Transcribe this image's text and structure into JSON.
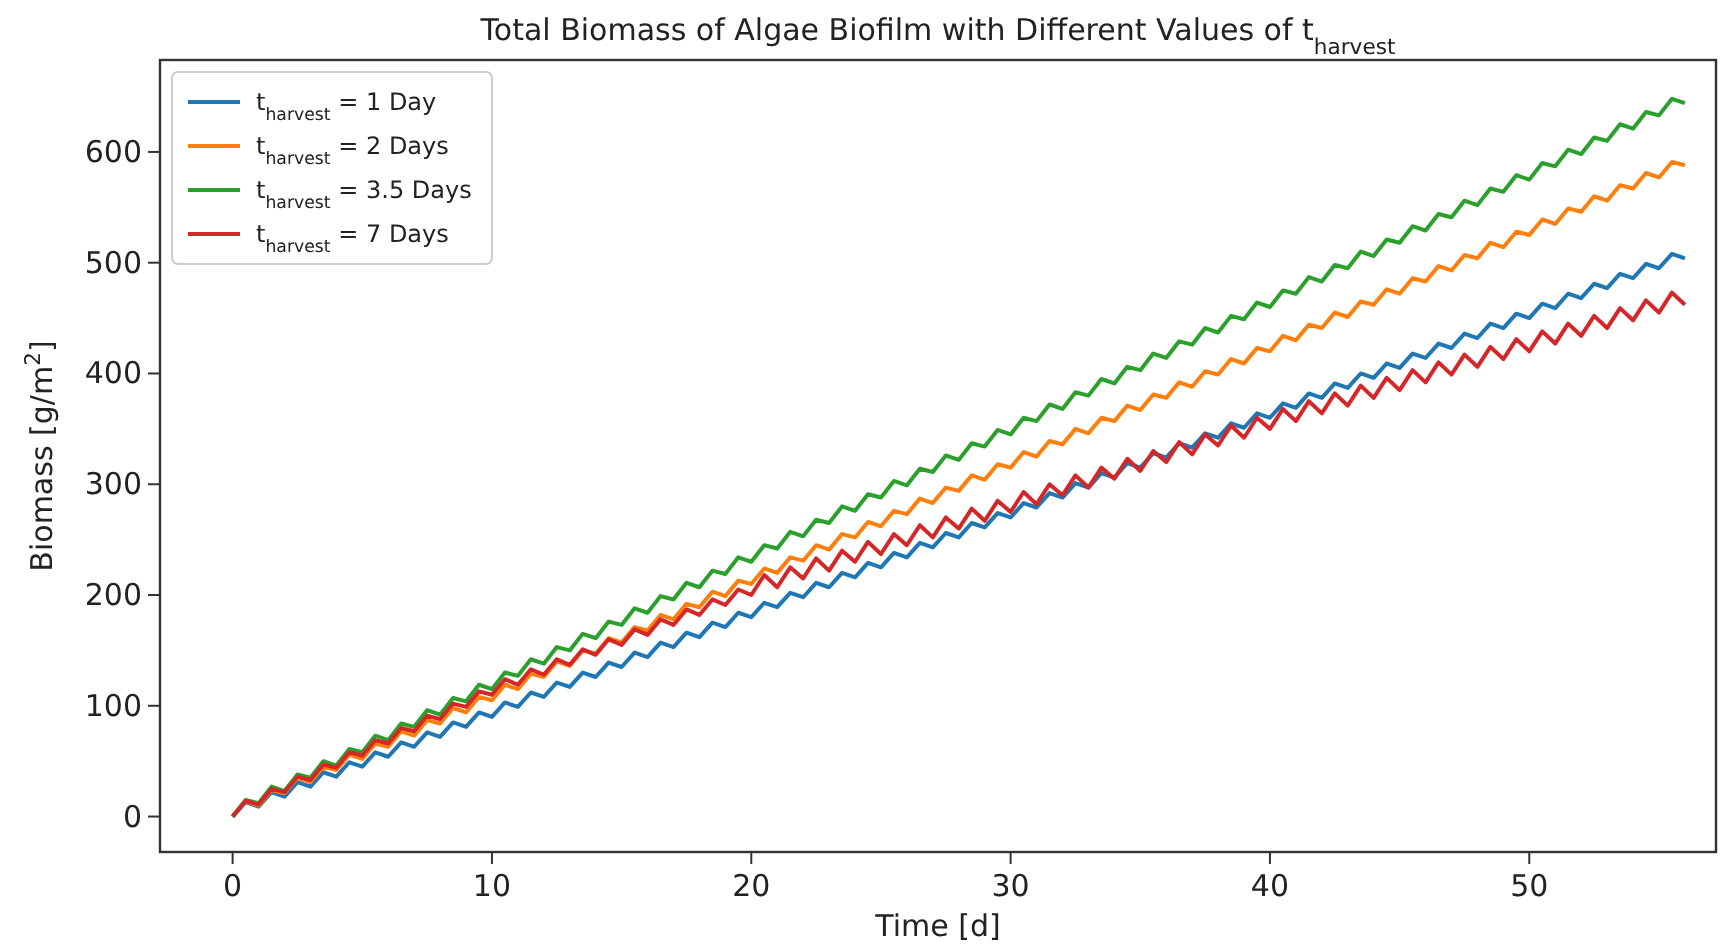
{
  "chart_data": {
    "type": "line",
    "title": "Total Biomass of Algae Biofilm with Different Values of t$_{harvest}$",
    "xlabel": "Time [d]",
    "ylabel": "Biomass [g/m$^{2}$]",
    "x": [
      0,
      0.5,
      1,
      1.5,
      2,
      2.5,
      3,
      3.5,
      4,
      4.5,
      5,
      5.5,
      6,
      6.5,
      7,
      7.5,
      8,
      8.5,
      9,
      9.5,
      10,
      10.5,
      11,
      11.5,
      12,
      12.5,
      13,
      13.5,
      14,
      14.5,
      15,
      15.5,
      16,
      16.5,
      17,
      17.5,
      18,
      18.5,
      19,
      19.5,
      20,
      20.5,
      21,
      21.5,
      22,
      22.5,
      23,
      23.5,
      24,
      24.5,
      25,
      25.5,
      26,
      26.5,
      27,
      27.5,
      28,
      28.5,
      29,
      29.5,
      30,
      30.5,
      31,
      31.5,
      32,
      32.5,
      33,
      33.5,
      34,
      34.5,
      35,
      35.5,
      36,
      36.5,
      37,
      37.5,
      38,
      38.5,
      39,
      39.5,
      40,
      40.5,
      41,
      41.5,
      42,
      42.5,
      43,
      43.5,
      44,
      44.5,
      45,
      45.5,
      46,
      46.5,
      47,
      47.5,
      48,
      48.5,
      49,
      49.5,
      50,
      50.5,
      51,
      51.5,
      52,
      52.5,
      53,
      53.5,
      54,
      54.5,
      55,
      55.5,
      56
    ],
    "series": [
      {
        "name": "t$_{harvest}$ = 1 Day",
        "color": "#1f77b4",
        "values": [
          0,
          13,
          9,
          22,
          18,
          31,
          27,
          40,
          36,
          49,
          45,
          58,
          54,
          67,
          63,
          76,
          72,
          85,
          81,
          94,
          90,
          103,
          99,
          112,
          108,
          121,
          117,
          130,
          126,
          139,
          135,
          148,
          144,
          157,
          153,
          166,
          162,
          175,
          171,
          184,
          180,
          193,
          189,
          202,
          198,
          211,
          207,
          220,
          216,
          229,
          225,
          238,
          234,
          247,
          243,
          256,
          252,
          265,
          261,
          274,
          270,
          283,
          279,
          292,
          288,
          301,
          297,
          310,
          306,
          319,
          315,
          328,
          324,
          337,
          333,
          346,
          342,
          355,
          351,
          364,
          360,
          373,
          369,
          382,
          378,
          391,
          387,
          400,
          396,
          409,
          405,
          418,
          414,
          427,
          423,
          436,
          432,
          445,
          441,
          454,
          450,
          463,
          459,
          472,
          468,
          481,
          477,
          490,
          486,
          499,
          495,
          508,
          504
        ]
      },
      {
        "name": "t$_{harvest}$ = 2 Days",
        "color": "#ff7f0e",
        "values": [
          0,
          14,
          10,
          24,
          21,
          35,
          31,
          45,
          42,
          56,
          52,
          66,
          63,
          77,
          73,
          87,
          84,
          98,
          94,
          108,
          105,
          119,
          115,
          129,
          126,
          140,
          136,
          150,
          147,
          161,
          157,
          171,
          168,
          182,
          178,
          192,
          189,
          203,
          199,
          213,
          210,
          224,
          220,
          234,
          231,
          245,
          241,
          255,
          252,
          266,
          262,
          276,
          273,
          287,
          283,
          297,
          294,
          308,
          304,
          318,
          315,
          329,
          325,
          339,
          336,
          350,
          346,
          360,
          357,
          371,
          367,
          381,
          378,
          392,
          388,
          402,
          399,
          413,
          409,
          423,
          420,
          434,
          430,
          444,
          441,
          455,
          451,
          465,
          462,
          476,
          472,
          486,
          483,
          497,
          493,
          507,
          504,
          518,
          514,
          528,
          525,
          539,
          535,
          549,
          546,
          560,
          556,
          570,
          567,
          581,
          577,
          591,
          588
        ]
      },
      {
        "name": "t$_{harvest}$ = 3.5 Days",
        "color": "#2ca02c",
        "values": [
          0,
          15,
          12,
          27,
          23,
          38,
          35,
          50,
          46,
          61,
          58,
          73,
          69,
          84,
          81,
          96,
          92,
          107,
          104,
          119,
          115,
          130,
          127,
          142,
          138,
          153,
          150,
          165,
          161,
          176,
          173,
          188,
          184,
          199,
          196,
          211,
          207,
          222,
          219,
          234,
          230,
          245,
          242,
          257,
          253,
          268,
          265,
          280,
          276,
          291,
          288,
          303,
          299,
          314,
          311,
          326,
          322,
          337,
          334,
          349,
          345,
          360,
          357,
          372,
          368,
          383,
          380,
          395,
          391,
          406,
          403,
          418,
          414,
          429,
          426,
          441,
          437,
          452,
          449,
          464,
          460,
          475,
          472,
          487,
          483,
          498,
          495,
          510,
          506,
          521,
          518,
          533,
          529,
          544,
          541,
          556,
          552,
          567,
          564,
          579,
          575,
          590,
          587,
          602,
          598,
          613,
          610,
          625,
          621,
          636,
          633,
          648,
          644
        ]
      },
      {
        "name": "t$_{harvest}$ = 7 Days",
        "color": "#d62728",
        "values": [
          0,
          14,
          11,
          25,
          22,
          36,
          33,
          47,
          44,
          58,
          55,
          69,
          66,
          80,
          77,
          91,
          88,
          102,
          99,
          113,
          110,
          124,
          119,
          133,
          128,
          142,
          137,
          151,
          146,
          160,
          155,
          169,
          164,
          178,
          173,
          187,
          182,
          196,
          191,
          205,
          200,
          218,
          207,
          225,
          215,
          233,
          222,
          240,
          230,
          248,
          237,
          255,
          245,
          263,
          252,
          270,
          260,
          278,
          267,
          285,
          275,
          293,
          282,
          300,
          290,
          308,
          297,
          315,
          305,
          323,
          312,
          330,
          320,
          338,
          327,
          345,
          335,
          353,
          342,
          360,
          350,
          368,
          357,
          375,
          364,
          382,
          371,
          389,
          378,
          396,
          385,
          403,
          392,
          410,
          399,
          417,
          406,
          424,
          413,
          431,
          420,
          438,
          427,
          445,
          434,
          452,
          441,
          459,
          448,
          466,
          455,
          473,
          462
        ]
      }
    ],
    "xlim": [
      -2.8,
      57.2
    ],
    "ylim": [
      -32,
      683
    ],
    "xticks": [
      0,
      10,
      20,
      30,
      40,
      50
    ],
    "yticks": [
      0,
      100,
      200,
      300,
      400,
      500,
      600
    ],
    "legend": "top left",
    "grid": false,
    "marker": "none",
    "line_style": "solid"
  }
}
